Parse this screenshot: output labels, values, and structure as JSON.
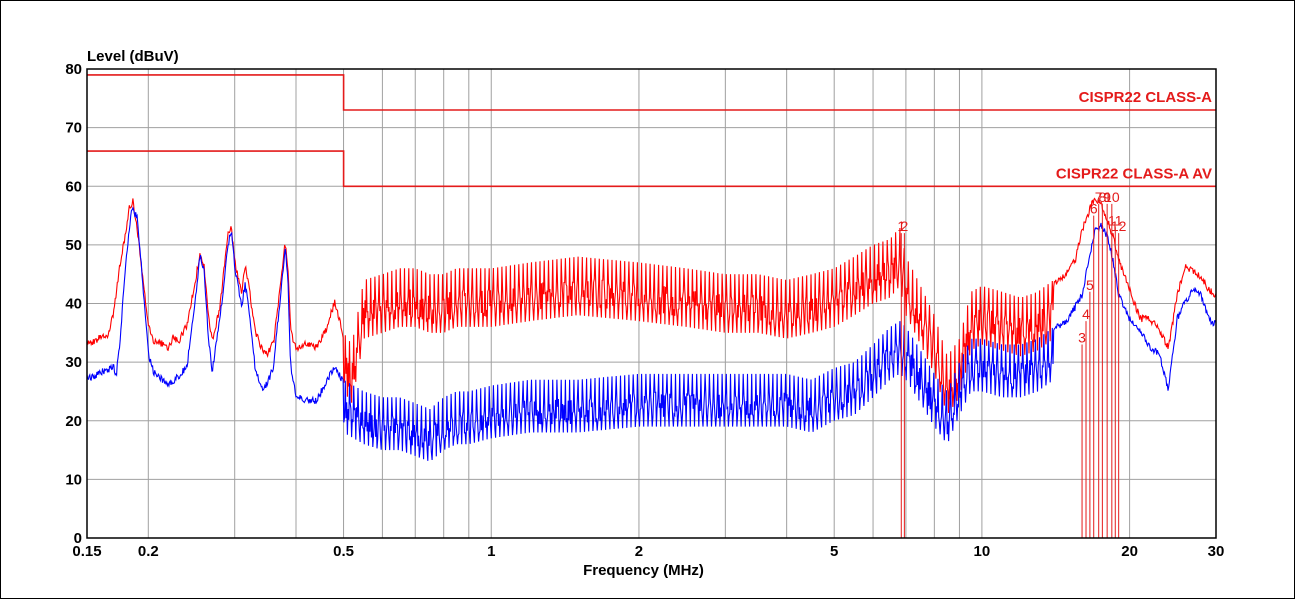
{
  "chart_data": {
    "type": "line",
    "ylabel": "Level (dBuV)",
    "xlabel": "Frequency (MHz)",
    "x_scale": "log",
    "xlim": [
      0.15,
      30
    ],
    "ylim": [
      0,
      80
    ],
    "grid": true,
    "x_ticks": [
      {
        "value": 0.15,
        "label": "0.15"
      },
      {
        "value": 0.2,
        "label": "0.2"
      },
      {
        "value": 0.5,
        "label": "0.5"
      },
      {
        "value": 1,
        "label": "1"
      },
      {
        "value": 2,
        "label": "2"
      },
      {
        "value": 5,
        "label": "5"
      },
      {
        "value": 10,
        "label": "10"
      },
      {
        "value": 20,
        "label": "20"
      },
      {
        "value": 30,
        "label": "30"
      }
    ],
    "y_ticks": [
      0,
      10,
      20,
      30,
      40,
      50,
      60,
      70,
      80
    ],
    "limit_lines": [
      {
        "label": "CISPR22 CLASS-A",
        "color": "#e41b1b",
        "points": [
          [
            0.15,
            79
          ],
          [
            0.5,
            79
          ],
          [
            0.5,
            73
          ],
          [
            30,
            73
          ]
        ]
      },
      {
        "label": "CISPR22 CLASS-A AV",
        "color": "#e41b1b",
        "points": [
          [
            0.15,
            66
          ],
          [
            0.5,
            66
          ],
          [
            0.5,
            60
          ],
          [
            30,
            60
          ]
        ]
      }
    ],
    "series": [
      {
        "color": "#ff0000",
        "points": [
          [
            0.15,
            34
          ],
          [
            0.155,
            34
          ],
          [
            0.16,
            35
          ],
          [
            0.165,
            35
          ],
          [
            0.17,
            39
          ],
          [
            0.175,
            47
          ],
          [
            0.18,
            53
          ],
          [
            0.183,
            57
          ],
          [
            0.186,
            58
          ],
          [
            0.19,
            53
          ],
          [
            0.195,
            45
          ],
          [
            0.2,
            37
          ],
          [
            0.205,
            34
          ],
          [
            0.21,
            34
          ],
          [
            0.22,
            33
          ],
          [
            0.225,
            35
          ],
          [
            0.23,
            34
          ],
          [
            0.24,
            37
          ],
          [
            0.25,
            45
          ],
          [
            0.255,
            49
          ],
          [
            0.26,
            47
          ],
          [
            0.265,
            39
          ],
          [
            0.27,
            34
          ],
          [
            0.28,
            40
          ],
          [
            0.29,
            52
          ],
          [
            0.295,
            54
          ],
          [
            0.3,
            48
          ],
          [
            0.31,
            42
          ],
          [
            0.315,
            47
          ],
          [
            0.32,
            44
          ],
          [
            0.33,
            36
          ],
          [
            0.34,
            33
          ],
          [
            0.35,
            32
          ],
          [
            0.36,
            34
          ],
          [
            0.37,
            42
          ],
          [
            0.38,
            51
          ],
          [
            0.385,
            47
          ],
          [
            0.39,
            36
          ],
          [
            0.4,
            33
          ],
          [
            0.42,
            34
          ],
          [
            0.44,
            33
          ],
          [
            0.46,
            36
          ],
          [
            0.48,
            41
          ],
          [
            0.5,
            35
          ],
          [
            0.52,
            33
          ],
          [
            0.55,
            44
          ],
          [
            0.6,
            45
          ],
          [
            0.65,
            46
          ],
          [
            0.7,
            46
          ],
          [
            0.75,
            45
          ],
          [
            0.8,
            45
          ],
          [
            0.85,
            46
          ],
          [
            0.9,
            46
          ],
          [
            1,
            46
          ],
          [
            1.2,
            47
          ],
          [
            1.5,
            48
          ],
          [
            2,
            47
          ],
          [
            2.5,
            46
          ],
          [
            3,
            45
          ],
          [
            3.5,
            45
          ],
          [
            4,
            44
          ],
          [
            4.5,
            45
          ],
          [
            5,
            46
          ],
          [
            5.5,
            48
          ],
          [
            6,
            50
          ],
          [
            6.5,
            51
          ],
          [
            6.8,
            53
          ],
          [
            7,
            48
          ],
          [
            7.2,
            46
          ],
          [
            7.5,
            43
          ],
          [
            8,
            38
          ],
          [
            8.5,
            31
          ],
          [
            9,
            34
          ],
          [
            9.5,
            42
          ],
          [
            10,
            43
          ],
          [
            11,
            42
          ],
          [
            12,
            41
          ],
          [
            13,
            42
          ],
          [
            14,
            44
          ],
          [
            15,
            46
          ],
          [
            15.5,
            48
          ],
          [
            16,
            53
          ],
          [
            16.5,
            56
          ],
          [
            16.8,
            58
          ],
          [
            17.2,
            58
          ],
          [
            17.6,
            57
          ],
          [
            18,
            55
          ],
          [
            18.5,
            52
          ],
          [
            19,
            48
          ],
          [
            20,
            43
          ],
          [
            21,
            38
          ],
          [
            22,
            38
          ],
          [
            23,
            36
          ],
          [
            24,
            33
          ],
          [
            25,
            42
          ],
          [
            26,
            47
          ],
          [
            27,
            46
          ],
          [
            28,
            45
          ],
          [
            29,
            43
          ],
          [
            30,
            42
          ]
        ]
      },
      {
        "color": "#0000ff",
        "points": [
          [
            0.15,
            28
          ],
          [
            0.155,
            28
          ],
          [
            0.16,
            29
          ],
          [
            0.165,
            29
          ],
          [
            0.17,
            30
          ],
          [
            0.172,
            28
          ],
          [
            0.175,
            34
          ],
          [
            0.18,
            48
          ],
          [
            0.185,
            57
          ],
          [
            0.19,
            55
          ],
          [
            0.195,
            44
          ],
          [
            0.2,
            32
          ],
          [
            0.205,
            29
          ],
          [
            0.21,
            28
          ],
          [
            0.22,
            27
          ],
          [
            0.23,
            28
          ],
          [
            0.24,
            30
          ],
          [
            0.25,
            42
          ],
          [
            0.255,
            49
          ],
          [
            0.26,
            46
          ],
          [
            0.265,
            35
          ],
          [
            0.27,
            29
          ],
          [
            0.28,
            38
          ],
          [
            0.29,
            50
          ],
          [
            0.295,
            53
          ],
          [
            0.3,
            47
          ],
          [
            0.31,
            40
          ],
          [
            0.315,
            44
          ],
          [
            0.32,
            40
          ],
          [
            0.33,
            30
          ],
          [
            0.34,
            26
          ],
          [
            0.35,
            27
          ],
          [
            0.36,
            30
          ],
          [
            0.37,
            40
          ],
          [
            0.38,
            50
          ],
          [
            0.385,
            45
          ],
          [
            0.39,
            30
          ],
          [
            0.4,
            25
          ],
          [
            0.42,
            24
          ],
          [
            0.44,
            24
          ],
          [
            0.46,
            27
          ],
          [
            0.48,
            30
          ],
          [
            0.5,
            27
          ],
          [
            0.55,
            25
          ],
          [
            0.6,
            24
          ],
          [
            0.65,
            24
          ],
          [
            0.7,
            23
          ],
          [
            0.75,
            22
          ],
          [
            0.8,
            24
          ],
          [
            0.85,
            25
          ],
          [
            0.9,
            25
          ],
          [
            1,
            26
          ],
          [
            1.2,
            27
          ],
          [
            1.5,
            27
          ],
          [
            2,
            28
          ],
          [
            2.5,
            28
          ],
          [
            3,
            28
          ],
          [
            3.5,
            28
          ],
          [
            4,
            28
          ],
          [
            4.5,
            27
          ],
          [
            5,
            29
          ],
          [
            5.5,
            30
          ],
          [
            6,
            33
          ],
          [
            6.5,
            36
          ],
          [
            6.8,
            37
          ],
          [
            7,
            36
          ],
          [
            7.5,
            32
          ],
          [
            8,
            28
          ],
          [
            8.5,
            25
          ],
          [
            9,
            30
          ],
          [
            9.5,
            34
          ],
          [
            10,
            34
          ],
          [
            11,
            33
          ],
          [
            12,
            33
          ],
          [
            13,
            34
          ],
          [
            14,
            36
          ],
          [
            15,
            38
          ],
          [
            16,
            42
          ],
          [
            16.5,
            48
          ],
          [
            17,
            53
          ],
          [
            17.5,
            54
          ],
          [
            18,
            52
          ],
          [
            18.5,
            48
          ],
          [
            19,
            42
          ],
          [
            20,
            38
          ],
          [
            21,
            36
          ],
          [
            22,
            33
          ],
          [
            23,
            32
          ],
          [
            24,
            26
          ],
          [
            25,
            38
          ],
          [
            26,
            41
          ],
          [
            27,
            43
          ],
          [
            28,
            42
          ],
          [
            29,
            38
          ],
          [
            30,
            37
          ]
        ]
      }
    ],
    "markers": [
      {
        "label": "1",
        "freq": 6.85,
        "level": 52
      },
      {
        "label": "2",
        "freq": 6.95,
        "level": 52
      },
      {
        "label": "3",
        "freq": 16.0,
        "level": 33
      },
      {
        "label": "4",
        "freq": 16.3,
        "level": 37
      },
      {
        "label": "5",
        "freq": 16.6,
        "level": 42
      },
      {
        "label": "6",
        "freq": 16.9,
        "level": 55
      },
      {
        "label": "7",
        "freq": 17.3,
        "level": 57
      },
      {
        "label": "8",
        "freq": 17.6,
        "level": 57
      },
      {
        "label": "9",
        "freq": 18.0,
        "level": 57
      },
      {
        "label": "10",
        "freq": 18.4,
        "level": 57
      },
      {
        "label": "11",
        "freq": 18.7,
        "level": 53
      },
      {
        "label": "12",
        "freq": 19.0,
        "level": 52
      }
    ]
  },
  "colors": {
    "limit": "#e41b1b",
    "peak_trace": "#ff0000",
    "average_trace": "#0000ff",
    "grid": "#a0a0a0"
  }
}
